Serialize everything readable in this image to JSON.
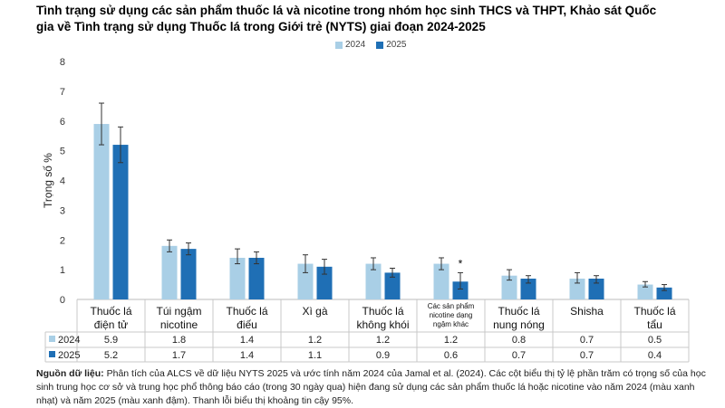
{
  "title": "Tình trạng sử dụng các sản phẩm thuốc lá và nicotine trong nhóm học sinh THCS và THPT, Khảo sát Quốc gia về Tình trạng sử dụng Thuốc lá trong Giới trẻ (NYTS) giai đoạn 2024-2025",
  "source": {
    "label": "Nguồn dữ liệu:",
    "text": "Phân tích của ALCS về dữ liệu NYTS 2025 và ước tính năm 2024 của Jamal et al. (2024). Các cột biểu thị tỷ lệ phần trăm có trọng số của học sinh trung học cơ sở và trung học phổ thông báo cáo (trong 30 ngày qua) hiện đang sử dụng các sản phẩm thuốc lá hoặc nicotine vào năm 2024 (màu xanh nhạt) và năm 2025 (màu xanh đậm). Thanh lỗi biểu thị khoảng tin cậy 95%."
  },
  "chart_data": {
    "type": "bar",
    "ylabel": "Trọng số %",
    "ylim": [
      0,
      8
    ],
    "yticks": [
      0,
      1,
      2,
      3,
      4,
      5,
      6,
      7,
      8
    ],
    "categories": [
      [
        "Thuốc lá",
        "điện tử"
      ],
      [
        "Túi ngậm",
        "nicotine"
      ],
      [
        "Thuốc lá",
        "điếu"
      ],
      [
        "Xì gà"
      ],
      [
        "Thuốc lá",
        "không khói"
      ],
      [
        "Các sản phẩm",
        "nicotine dạng",
        "ngậm khác"
      ],
      [
        "Thuốc lá",
        "nung nóng"
      ],
      [
        "Shisha"
      ],
      [
        "Thuốc lá",
        "tẩu"
      ]
    ],
    "small_label_index": 5,
    "annotation": {
      "category_index": 5,
      "series_index": 1,
      "text": "*"
    },
    "series": [
      {
        "name": "2024",
        "color": "#a9cfe6",
        "values": [
          5.9,
          1.8,
          1.4,
          1.2,
          1.2,
          1.2,
          0.8,
          0.7,
          0.5
        ],
        "labels": [
          "5.9",
          "1.8",
          "1.4",
          "1.2",
          "1.2",
          "1.2",
          "0.8",
          "0.7",
          "0.5"
        ],
        "err_low": [
          5.2,
          1.6,
          1.2,
          0.9,
          1.0,
          1.0,
          0.65,
          0.55,
          0.42
        ],
        "err_high": [
          6.6,
          2.0,
          1.7,
          1.5,
          1.4,
          1.4,
          1.0,
          0.9,
          0.6
        ]
      },
      {
        "name": "2025",
        "color": "#1f6fb5",
        "values": [
          5.2,
          1.7,
          1.4,
          1.1,
          0.9,
          0.6,
          0.7,
          0.7,
          0.4
        ],
        "labels": [
          "5.2",
          "1.7",
          "1.4",
          "1.1",
          "0.9",
          "0.6",
          "0.7",
          "0.7",
          "0.4"
        ],
        "err_low": [
          4.6,
          1.5,
          1.2,
          0.85,
          0.75,
          0.35,
          0.55,
          0.55,
          0.3
        ],
        "err_high": [
          5.8,
          1.9,
          1.6,
          1.35,
          1.05,
          0.9,
          0.8,
          0.8,
          0.5
        ]
      }
    ]
  }
}
